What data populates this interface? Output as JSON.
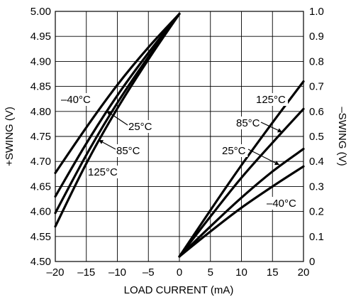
{
  "chart_data": {
    "type": "line",
    "xlabel": "LOAD CURRENT (mA)",
    "ylabel": "+SWING (V)",
    "y2label": "–SWING (V)",
    "xlim": [
      -20,
      20
    ],
    "ylim": [
      4.5,
      5.0
    ],
    "y2lim": [
      0,
      1.0
    ],
    "grid": true,
    "x_ticks": [
      "–20",
      "–15",
      "–10",
      "–5",
      "0",
      "5",
      "10",
      "15",
      "20"
    ],
    "y_ticks": [
      "4.50",
      "4.55",
      "4.60",
      "4.65",
      "4.70",
      "4.75",
      "4.80",
      "4.85",
      "4.90",
      "4.95",
      "5.00"
    ],
    "y2_ticks": [
      "0",
      "0.1",
      "0.2",
      "0.3",
      "0.4",
      "0.5",
      "0.6",
      "0.7",
      "0.8",
      "0.9",
      "1.0"
    ],
    "series": [
      {
        "name": "–40°C",
        "axis": "left",
        "x": [
          -20,
          -15,
          -10,
          -5,
          0
        ],
        "y": [
          4.677,
          4.768,
          4.853,
          4.928,
          4.995
        ]
      },
      {
        "name": "25°C",
        "axis": "left",
        "x": [
          -20,
          -15,
          -10,
          -5,
          0
        ],
        "y": [
          4.63,
          4.736,
          4.832,
          4.917,
          4.995
        ]
      },
      {
        "name": "85°C",
        "axis": "left",
        "x": [
          -20,
          -15,
          -10,
          -5,
          0
        ],
        "y": [
          4.597,
          4.713,
          4.817,
          4.909,
          4.995
        ]
      },
      {
        "name": "125°C",
        "axis": "left",
        "x": [
          -20,
          -15,
          -10,
          -5,
          0
        ],
        "y": [
          4.57,
          4.696,
          4.806,
          4.904,
          4.995
        ]
      },
      {
        "name": "125°C",
        "axis": "right",
        "x": [
          0,
          5,
          10,
          15,
          20
        ],
        "y": [
          0.02,
          0.205,
          0.385,
          0.555,
          0.72
        ]
      },
      {
        "name": "85°C",
        "axis": "right",
        "x": [
          0,
          5,
          10,
          15,
          20
        ],
        "y": [
          0.02,
          0.18,
          0.335,
          0.475,
          0.61
        ]
      },
      {
        "name": "25°C",
        "axis": "right",
        "x": [
          0,
          5,
          10,
          15,
          20
        ],
        "y": [
          0.02,
          0.14,
          0.255,
          0.36,
          0.45
        ]
      },
      {
        "name": "–40°C",
        "axis": "right",
        "x": [
          0,
          5,
          10,
          15,
          20
        ],
        "y": [
          0.02,
          0.12,
          0.215,
          0.3,
          0.38
        ]
      }
    ],
    "annotations": [
      {
        "text": "–40°C"
      },
      {
        "text": "25°C"
      },
      {
        "text": "85°C"
      },
      {
        "text": "125°C"
      },
      {
        "text": "125°C"
      },
      {
        "text": "85°C"
      },
      {
        "text": "25°C"
      },
      {
        "text": "–40°C"
      }
    ]
  }
}
